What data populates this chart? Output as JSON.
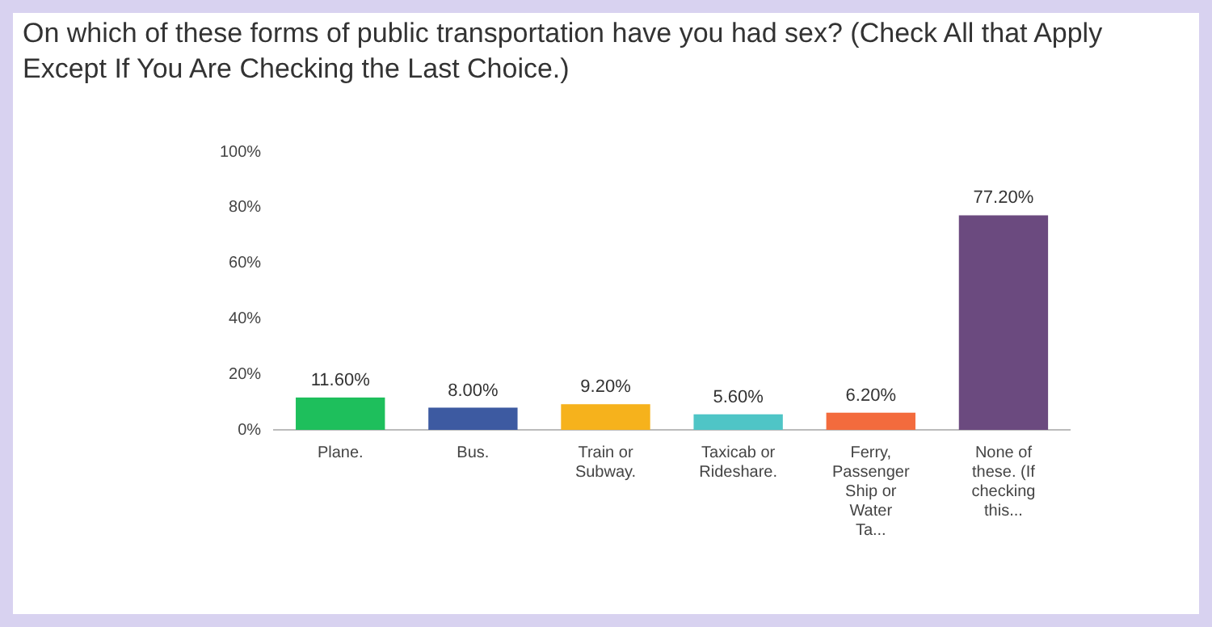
{
  "chart_data": {
    "type": "bar",
    "title": "On which of these forms of public transportation have you had sex? (Check All that Apply Except If You Are Checking the Last Choice.)",
    "categories": [
      "Plane.",
      "Bus.",
      "Train or Subway.",
      "Taxicab or Rideshare.",
      "Ferry, Passenger Ship or Water Ta...",
      "None of these. (If checking this..."
    ],
    "values": [
      11.6,
      8.0,
      9.2,
      5.6,
      6.2,
      77.2
    ],
    "colors": [
      "#1ebf5c",
      "#3d5aa1",
      "#f6b21c",
      "#4fc5c6",
      "#f36b3d",
      "#6b4a7f"
    ],
    "value_labels": [
      "11.60%",
      "8.00%",
      "9.20%",
      "5.60%",
      "6.20%",
      "77.20%"
    ],
    "ylim": [
      0,
      100
    ],
    "yticks": [
      {
        "value": 0,
        "label": "0%"
      },
      {
        "value": 20,
        "label": "20%"
      },
      {
        "value": 40,
        "label": "40%"
      },
      {
        "value": 60,
        "label": "60%"
      },
      {
        "value": 80,
        "label": "80%"
      },
      {
        "value": 100,
        "label": "100%"
      }
    ],
    "grid": false,
    "legend": false
  }
}
